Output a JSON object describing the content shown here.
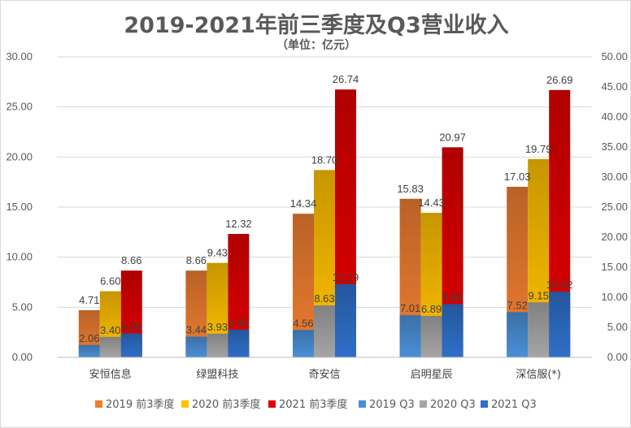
{
  "chart_data": {
    "type": "bar",
    "title": "2019-2021年前三季度及Q3营业收入",
    "subtitle": "（单位：亿元）",
    "categories": [
      "安恒信息",
      "绿盟科技",
      "奇安信",
      "启明星辰",
      "深信服(*)"
    ],
    "ylim": [
      0,
      30
    ],
    "y2lim": [
      0,
      50
    ],
    "yticks": [
      "0.00",
      "5.00",
      "10.00",
      "15.00",
      "20.00",
      "25.00",
      "30.00"
    ],
    "y2ticks": [
      "0.00",
      "5.00",
      "10.00",
      "15.00",
      "20.00",
      "25.00",
      "30.00",
      "35.00",
      "40.00",
      "45.00",
      "50.00"
    ],
    "series": [
      {
        "name": "2019 前3季度",
        "values": [
          4.71,
          8.66,
          14.34,
          15.83,
          17.03
        ],
        "labels": [
          "4.71",
          "8.66",
          "14.34",
          "15.83",
          "17.03"
        ],
        "color": "#ED7D31",
        "axis": "left"
      },
      {
        "name": "2020 前3季度",
        "values": [
          6.6,
          9.43,
          18.7,
          14.43,
          19.79
        ],
        "labels": [
          "6.60",
          "9.43",
          "18.70",
          "14.43",
          "19.79"
        ],
        "color": "#FFC000",
        "axis": "left"
      },
      {
        "name": "2021 前3季度",
        "values": [
          8.66,
          12.32,
          26.74,
          20.97,
          26.69
        ],
        "labels": [
          "8.66",
          "12.32",
          "26.74",
          "20.97",
          "26.69"
        ],
        "color": "#E00000",
        "axis": "left"
      },
      {
        "name": "2019 Q3",
        "values": [
          2.06,
          3.44,
          4.56,
          7.01,
          7.52
        ],
        "labels": [
          "2.06",
          "3.44",
          "4.56",
          "7.01",
          "7.52"
        ],
        "color": "#4A8FD6",
        "axis": "right"
      },
      {
        "name": "2020 Q3",
        "values": [
          3.4,
          3.93,
          8.63,
          6.89,
          9.15
        ],
        "labels": [
          "3.40",
          "3.93",
          "8.63",
          "6.89",
          "9.15"
        ],
        "color": "#A5A5A5",
        "axis": "right"
      },
      {
        "name": "2021 Q3",
        "values": [
          4.0,
          4.6,
          12.19,
          8.86,
          10.92
        ],
        "labels": [
          "4.00",
          "4.60",
          "12.19",
          "8.86",
          "10.92"
        ],
        "color": "#2E6FC8",
        "axis": "right"
      }
    ],
    "legend": "bottom"
  }
}
